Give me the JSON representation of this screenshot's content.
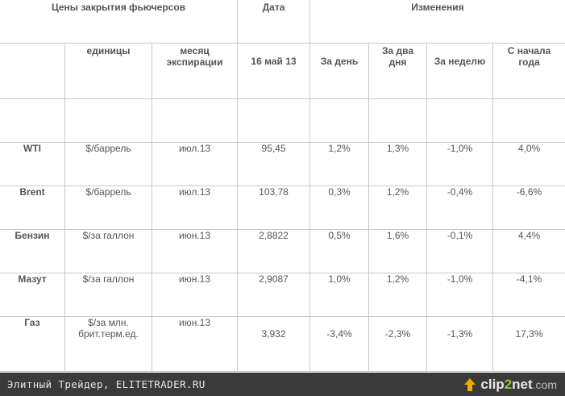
{
  "table": {
    "header": {
      "title": "Цены закрытия фьючерсов",
      "date_label": "Дата",
      "changes_label": "Изменения"
    },
    "subheader": {
      "units": "единицы",
      "expiry_l1": "месяц",
      "expiry_l2": "экспирации",
      "date": "16 май 13",
      "day": "За день",
      "two_days_l1": "За два",
      "two_days_l2": "дня",
      "week": "За неделю",
      "ytd_l1": "С начала",
      "ytd_l2": "года"
    },
    "rows": [
      {
        "name": "WTI",
        "unit": "$/баррель",
        "expiry": "июл.13",
        "price": "95,45",
        "day": "1,2%",
        "two_days": "1,3%",
        "week": "-1,0%",
        "ytd": "4,0%"
      },
      {
        "name": "Brent",
        "unit": "$/баррель",
        "expiry": "июл.13",
        "price": "103,78",
        "day": "0,3%",
        "two_days": "1,2%",
        "week": "-0,4%",
        "ytd": "-6,6%"
      },
      {
        "name": "Бензин",
        "unit": "$/за галлон",
        "expiry": "июн.13",
        "price": "2,8822",
        "day": "0,5%",
        "two_days": "1,6%",
        "week": "-0,1%",
        "ytd": "4,4%"
      },
      {
        "name": "Мазут",
        "unit": "$/за галлон",
        "expiry": "июн.13",
        "price": "2,9087",
        "day": "1,0%",
        "two_days": "1,2%",
        "week": "-1,0%",
        "ytd": "-4,1%"
      },
      {
        "name": "Газ",
        "unit_l1": "$/за млн.",
        "unit_l2": "брит.терм.ед.",
        "expiry": "июн.13",
        "price": "3,932",
        "day": "-3,4%",
        "two_days": "-2,3%",
        "week": "-1,3%",
        "ytd": "17,3%"
      }
    ]
  },
  "footer": {
    "text": "Элитный Трейдер, ELITETRADER.RU",
    "brand_a": "clip",
    "brand_b": "2",
    "brand_c": "net",
    "brand_d": ".com"
  }
}
